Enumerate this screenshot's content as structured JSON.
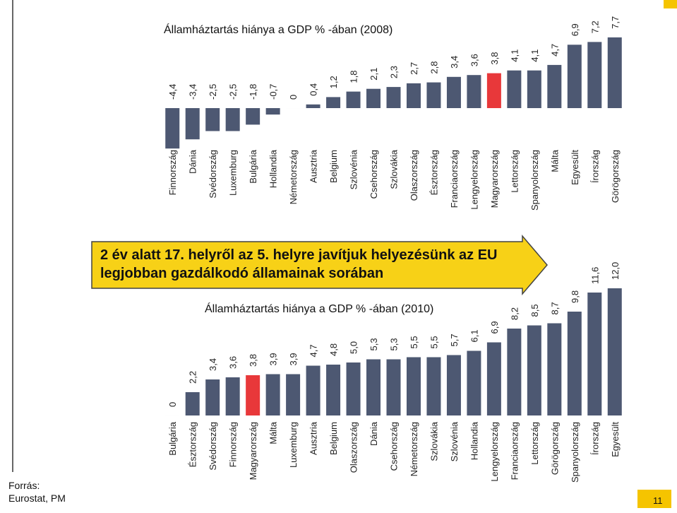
{
  "chart_data": [
    {
      "type": "bar",
      "title": "Államháztartás hiánya a GDP % -ában (2008)",
      "categories": [
        "Finnország",
        "Dánia",
        "Svédország",
        "Luxemburg",
        "Bulgária",
        "Hollandia",
        "Németország",
        "Ausztria",
        "Belgium",
        "Szlovénia",
        "Csehország",
        "Szlovákia",
        "Olaszország",
        "Észtország",
        "Franciaország",
        "Lengyelország",
        "Magyarország",
        "Lettország",
        "Spanyolország",
        "Málta",
        "Egyesült",
        "Írország",
        "Görögország"
      ],
      "values": [
        -4.4,
        -3.4,
        -2.5,
        -2.5,
        -1.8,
        -0.7,
        0,
        0.4,
        1.2,
        1.8,
        2.1,
        2.3,
        2.7,
        2.8,
        3.4,
        3.6,
        3.8,
        4.1,
        4.1,
        4.7,
        6.9,
        7.2,
        7.7
      ],
      "value_labels": [
        "-4,4",
        "-3,4",
        "-2,5",
        "-2,5",
        "-1,8",
        "-0,7",
        "0",
        "0,4",
        "1,2",
        "1,8",
        "2,1",
        "2,3",
        "2,7",
        "2,8",
        "3,4",
        "3,6",
        "3,8",
        "4,1",
        "4,1",
        "4,7",
        "6,9",
        "7,2",
        "7,7"
      ],
      "colors": [
        "#4d5872",
        "#4d5872",
        "#4d5872",
        "#4d5872",
        "#4d5872",
        "#4d5872",
        "#4d5872",
        "#4d5872",
        "#4d5872",
        "#4d5872",
        "#4d5872",
        "#4d5872",
        "#4d5872",
        "#4d5872",
        "#4d5872",
        "#4d5872",
        "#e8383a",
        "#4d5872",
        "#4d5872",
        "#4d5872",
        "#4d5872",
        "#4d5872",
        "#4d5872"
      ],
      "ylim": [
        -4.5,
        8
      ]
    },
    {
      "type": "bar",
      "title": "Államháztartás hiánya a GDP % -ában (2010)",
      "categories": [
        "Bulgária",
        "Észtország",
        "Svédország",
        "Finnország",
        "Magyarország",
        "Málta",
        "Luxemburg",
        "Ausztria",
        "Belgium",
        "Olaszország",
        "Dánia",
        "Csehország",
        "Németország",
        "Szlovákia",
        "Szlovénia",
        "Hollandia",
        "Lengyelország",
        "Franciaország",
        "Lettország",
        "Görögország",
        "Spanyolország",
        "Írország",
        "Egyesült"
      ],
      "values": [
        0,
        2.2,
        3.4,
        3.6,
        3.8,
        3.9,
        3.9,
        4.7,
        4.8,
        5.0,
        5.3,
        5.3,
        5.5,
        5.5,
        5.7,
        6.1,
        6.9,
        8.2,
        8.5,
        8.7,
        9.8,
        11.6,
        12.0
      ],
      "value_labels": [
        "0",
        "2,2",
        "3,4",
        "3,6",
        "3,8",
        "3,9",
        "3,9",
        "4,7",
        "4,8",
        "5,0",
        "5,3",
        "5,3",
        "5,5",
        "5,5",
        "5,7",
        "6,1",
        "6,9",
        "8,2",
        "8,5",
        "8,7",
        "9,8",
        "11,6",
        "12,0"
      ],
      "colors": [
        "#4d5872",
        "#4d5872",
        "#4d5872",
        "#4d5872",
        "#e8383a",
        "#4d5872",
        "#4d5872",
        "#4d5872",
        "#4d5872",
        "#4d5872",
        "#4d5872",
        "#4d5872",
        "#4d5872",
        "#4d5872",
        "#4d5872",
        "#4d5872",
        "#4d5872",
        "#4d5872",
        "#4d5872",
        "#4d5872",
        "#4d5872",
        "#4d5872",
        "#4d5872"
      ],
      "ylim": [
        0,
        12.5
      ]
    }
  ],
  "callout": [
    "2 év alatt 17. helyről az 5. helyre javítjuk helyezésünk az EU",
    "legjobban gazdálkodó államainak sorában"
  ],
  "source": [
    "Forrás:",
    "Eurostat, PM"
  ],
  "page_number": "11"
}
